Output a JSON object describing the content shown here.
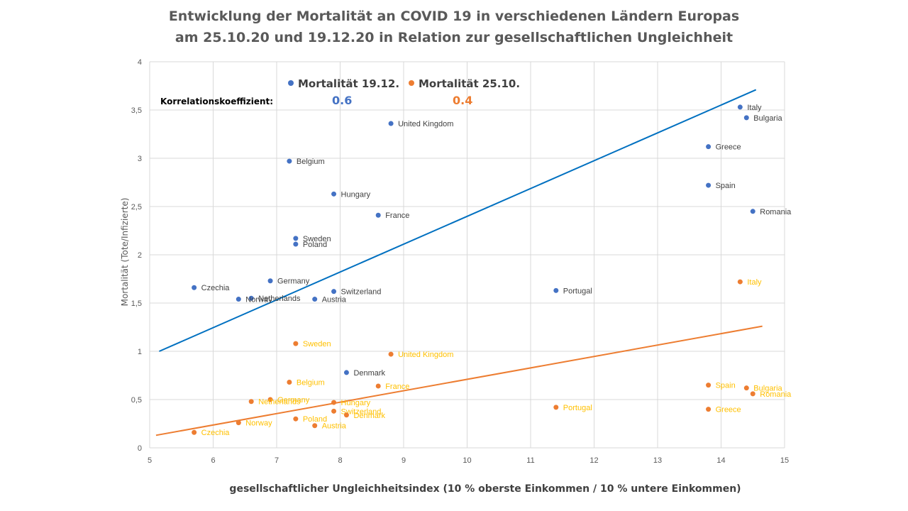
{
  "chart_data": {
    "type": "scatter",
    "title": "Entwicklung der Mortalität an COVID 19 in verschiedenen Ländern Europas",
    "subtitle": "am 25.10.20  und 19.12.20 in Relation zur gesellschaftlichen Ungleichheit",
    "xlabel": "gesellschaftlicher Ungleichheitsindex (10 % oberste Einkommen / 10 % untere Einkommen)",
    "ylabel": "Mortalität (Tote/Infizierte)",
    "xlim": [
      5,
      15
    ],
    "ylim": [
      0,
      4
    ],
    "xticks": [
      5,
      6,
      7,
      8,
      9,
      10,
      11,
      12,
      13,
      14,
      15
    ],
    "yticks": [
      "0",
      "0,5",
      "1",
      "1,5",
      "2",
      "2,5",
      "3",
      "3,5",
      "4"
    ],
    "grid": true,
    "legend_position": "top",
    "correlation_label": "Korrelationskoeffizient:",
    "series": [
      {
        "name": "Mortalität 19.12.",
        "color": "#4472C4",
        "trend_color": "#0070C0",
        "label_color": "#404040",
        "correlation": "0.6",
        "trendline": [
          [
            5.15,
            1.0
          ],
          [
            14.55,
            3.71
          ]
        ],
        "points": [
          {
            "label": "Italy",
            "x": 14.3,
            "y": 3.53
          },
          {
            "label": "Bulgaria",
            "x": 14.4,
            "y": 3.42
          },
          {
            "label": "United Kingdom",
            "x": 8.8,
            "y": 3.36
          },
          {
            "label": "Greece",
            "x": 13.8,
            "y": 3.12
          },
          {
            "label": "Belgium",
            "x": 7.2,
            "y": 2.97
          },
          {
            "label": "Spain",
            "x": 13.8,
            "y": 2.72
          },
          {
            "label": "Hungary",
            "x": 7.9,
            "y": 2.63
          },
          {
            "label": "Romania",
            "x": 14.5,
            "y": 2.45
          },
          {
            "label": "France",
            "x": 8.6,
            "y": 2.41
          },
          {
            "label": "Sweden",
            "x": 7.3,
            "y": 2.17
          },
          {
            "label": "Poland",
            "x": 7.3,
            "y": 2.11
          },
          {
            "label": "Germany",
            "x": 6.9,
            "y": 1.73
          },
          {
            "label": "Czechia",
            "x": 5.7,
            "y": 1.66
          },
          {
            "label": "Switzerland",
            "x": 7.9,
            "y": 1.62
          },
          {
            "label": "Portugal",
            "x": 11.4,
            "y": 1.63
          },
          {
            "label": "Netherlands",
            "x": 6.6,
            "y": 1.55
          },
          {
            "label": "Norway",
            "x": 6.4,
            "y": 1.54
          },
          {
            "label": "Austria",
            "x": 7.6,
            "y": 1.54
          },
          {
            "label": "Denmark",
            "x": 8.1,
            "y": 0.78
          }
        ]
      },
      {
        "name": "Mortalität 25.10.",
        "color": "#ED7D31",
        "trend_color": "#ED7D31",
        "label_color": "#FFC000",
        "correlation": "0.4",
        "trendline": [
          [
            5.1,
            0.13
          ],
          [
            14.65,
            1.26
          ]
        ],
        "points": [
          {
            "label": "Italy",
            "x": 14.3,
            "y": 1.72
          },
          {
            "label": "Sweden",
            "x": 7.3,
            "y": 1.08
          },
          {
            "label": "United Kingdom",
            "x": 8.8,
            "y": 0.97
          },
          {
            "label": "Belgium",
            "x": 7.2,
            "y": 0.68
          },
          {
            "label": "Spain",
            "x": 13.8,
            "y": 0.65
          },
          {
            "label": "France",
            "x": 8.6,
            "y": 0.64
          },
          {
            "label": "Bulgaria",
            "x": 14.4,
            "y": 0.62
          },
          {
            "label": "Romania",
            "x": 14.5,
            "y": 0.56
          },
          {
            "label": "Germany",
            "x": 6.9,
            "y": 0.5
          },
          {
            "label": "Netherlands",
            "x": 6.6,
            "y": 0.48
          },
          {
            "label": "Hungary",
            "x": 7.9,
            "y": 0.47
          },
          {
            "label": "Portugal",
            "x": 11.4,
            "y": 0.42
          },
          {
            "label": "Greece",
            "x": 13.8,
            "y": 0.4
          },
          {
            "label": "Switzerland",
            "x": 7.9,
            "y": 0.38
          },
          {
            "label": "Denmark",
            "x": 8.1,
            "y": 0.34
          },
          {
            "label": "Poland",
            "x": 7.3,
            "y": 0.3
          },
          {
            "label": "Norway",
            "x": 6.4,
            "y": 0.26
          },
          {
            "label": "Austria",
            "x": 7.6,
            "y": 0.23
          },
          {
            "label": "Czechia",
            "x": 5.7,
            "y": 0.16
          }
        ]
      }
    ]
  }
}
